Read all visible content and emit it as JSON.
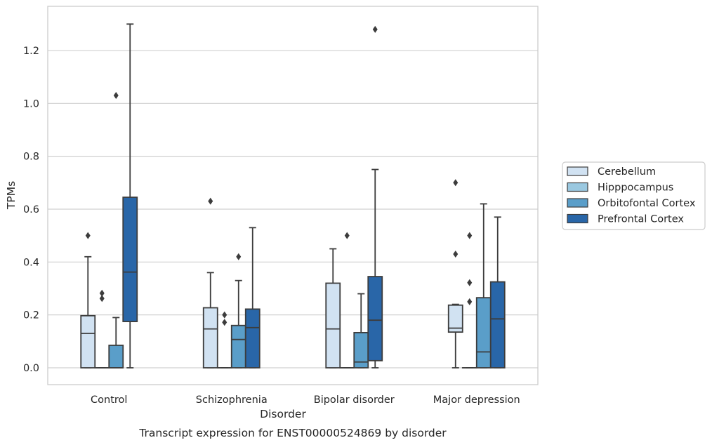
{
  "chart_data": {
    "type": "box",
    "categories": [
      "Control",
      "Schizophrenia",
      "Bipolar disorder",
      "Major depression"
    ],
    "xlabel": "Disorder",
    "ylabel": "TPMs",
    "caption": "Transcript expression for ENST00000524869 by disorder",
    "ylim": [
      -0.065,
      1.37
    ],
    "yticks": [
      "0.0",
      "0.2",
      "0.4",
      "0.6",
      "0.8",
      "1.0",
      "1.2"
    ],
    "grid": "horizontal",
    "legend_position": "right",
    "series": [
      {
        "name": "Cerebellum",
        "color": "#d1e2f2",
        "boxes": [
          {
            "q1": 0.0,
            "median": 0.13,
            "q3": 0.197,
            "whisker_low": 0.0,
            "whisker_high": 0.42,
            "outliers": [
              0.5
            ]
          },
          {
            "q1": 0.0,
            "median": 0.147,
            "q3": 0.227,
            "whisker_low": 0.0,
            "whisker_high": 0.36,
            "outliers": [
              0.63
            ]
          },
          {
            "q1": 0.0,
            "median": 0.147,
            "q3": 0.32,
            "whisker_low": 0.0,
            "whisker_high": 0.45,
            "outliers": []
          },
          {
            "q1": 0.135,
            "median": 0.15,
            "q3": 0.237,
            "whisker_low": 0.0,
            "whisker_high": 0.24,
            "outliers": [
              0.43,
              0.7
            ]
          }
        ]
      },
      {
        "name": "Hipppocampus",
        "color": "#9ac8e0",
        "boxes": [
          {
            "q1": 0.0,
            "median": 0.0,
            "q3": 0.0,
            "whisker_low": 0.0,
            "whisker_high": 0.0,
            "outliers": [
              0.262,
              0.282
            ]
          },
          {
            "q1": 0.0,
            "median": 0.0,
            "q3": 0.0,
            "whisker_low": 0.0,
            "whisker_high": 0.0,
            "outliers": [
              0.172,
              0.2
            ]
          },
          {
            "q1": 0.0,
            "median": 0.0,
            "q3": 0.0,
            "whisker_low": 0.0,
            "whisker_high": 0.0,
            "outliers": [
              0.5
            ]
          },
          {
            "q1": 0.0,
            "median": 0.0,
            "q3": 0.0,
            "whisker_low": 0.0,
            "whisker_high": 0.0,
            "outliers": [
              0.25,
              0.322,
              0.5
            ]
          }
        ]
      },
      {
        "name": "Orbitofontal Cortex",
        "color": "#5a9ec9",
        "boxes": [
          {
            "q1": 0.0,
            "median": 0.0,
            "q3": 0.085,
            "whisker_low": 0.0,
            "whisker_high": 0.19,
            "outliers": [
              1.03
            ]
          },
          {
            "q1": 0.0,
            "median": 0.107,
            "q3": 0.16,
            "whisker_low": 0.0,
            "whisker_high": 0.33,
            "outliers": [
              0.42
            ]
          },
          {
            "q1": 0.0,
            "median": 0.022,
            "q3": 0.133,
            "whisker_low": 0.0,
            "whisker_high": 0.28,
            "outliers": []
          },
          {
            "q1": 0.0,
            "median": 0.06,
            "q3": 0.265,
            "whisker_low": 0.0,
            "whisker_high": 0.62,
            "outliers": []
          }
        ]
      },
      {
        "name": "Prefrontal Cortex",
        "color": "#2966a8",
        "boxes": [
          {
            "q1": 0.175,
            "median": 0.362,
            "q3": 0.645,
            "whisker_low": 0.0,
            "whisker_high": 1.3,
            "outliers": []
          },
          {
            "q1": 0.0,
            "median": 0.152,
            "q3": 0.222,
            "whisker_low": 0.0,
            "whisker_high": 0.53,
            "outliers": []
          },
          {
            "q1": 0.027,
            "median": 0.18,
            "q3": 0.345,
            "whisker_low": 0.0,
            "whisker_high": 0.75,
            "outliers": [
              1.28
            ]
          },
          {
            "q1": 0.0,
            "median": 0.185,
            "q3": 0.325,
            "whisker_low": 0.0,
            "whisker_high": 0.57,
            "outliers": []
          }
        ]
      }
    ]
  }
}
